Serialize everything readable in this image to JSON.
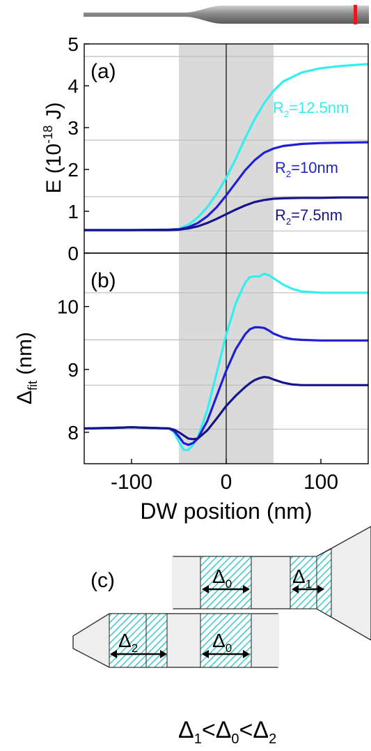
{
  "colors": {
    "cyan": "#33EEEE",
    "blue": "#1F1FD6",
    "navy": "#16168A",
    "shade": "#DADADA",
    "grid": "#BDBDBD",
    "hatch": "#3CC8C8",
    "nanowire_marker": "#E41A1C"
  },
  "chart_data": [
    {
      "type": "line",
      "panel_label": "(a)",
      "ylabel_main": "E (10",
      "ylabel_exp": "-18",
      "ylabel_end": " J)",
      "xlim": [
        -150,
        150
      ],
      "ylim": [
        0,
        5
      ],
      "yticks": [
        0,
        1,
        2,
        3,
        4,
        5
      ],
      "ytick_labels": [
        "0",
        "1",
        "2",
        "3",
        "4",
        "5"
      ],
      "shaded_region": [
        -50,
        50
      ],
      "vline": 0,
      "hlines": [
        4.7,
        2.7,
        1.35,
        0.53
      ],
      "series": [
        {
          "label_main": "R",
          "label_sub": "2",
          "label_end": "=12.5nm",
          "color": "cyan",
          "x": [
            -150,
            -100,
            -60,
            -50,
            -40,
            -30,
            -20,
            -10,
            0,
            10,
            20,
            30,
            40,
            50,
            60,
            80,
            100,
            120,
            150
          ],
          "y": [
            0.55,
            0.55,
            0.56,
            0.58,
            0.68,
            0.85,
            1.1,
            1.42,
            1.8,
            2.25,
            2.75,
            3.2,
            3.58,
            3.88,
            4.1,
            4.32,
            4.42,
            4.47,
            4.52
          ]
        },
        {
          "label_main": "R",
          "label_sub": "2",
          "label_end": "=10nm",
          "color": "blue",
          "x": [
            -150,
            -100,
            -60,
            -50,
            -40,
            -30,
            -20,
            -10,
            0,
            10,
            20,
            30,
            40,
            50,
            60,
            80,
            100,
            120,
            150
          ],
          "y": [
            0.55,
            0.55,
            0.56,
            0.57,
            0.62,
            0.72,
            0.88,
            1.1,
            1.38,
            1.68,
            1.98,
            2.22,
            2.4,
            2.5,
            2.56,
            2.61,
            2.63,
            2.64,
            2.65
          ]
        },
        {
          "label_main": "R",
          "label_sub": "2",
          "label_end": "=7.5nm",
          "color": "navy",
          "x": [
            -150,
            -100,
            -60,
            -50,
            -40,
            -30,
            -20,
            -10,
            0,
            10,
            20,
            30,
            40,
            50,
            60,
            80,
            100,
            120,
            150
          ],
          "y": [
            0.55,
            0.55,
            0.55,
            0.56,
            0.59,
            0.64,
            0.72,
            0.82,
            0.93,
            1.04,
            1.14,
            1.22,
            1.27,
            1.3,
            1.31,
            1.32,
            1.32,
            1.33,
            1.33
          ]
        }
      ]
    },
    {
      "type": "line",
      "panel_label": "(b)",
      "ylabel_main": "Δ",
      "ylabel_sub": "fit",
      "ylabel_end": " (nm)",
      "xlabel": "DW position (nm)",
      "xlim": [
        -150,
        150
      ],
      "xticks": [
        -100,
        0,
        100
      ],
      "xtick_labels": [
        "-100",
        "0",
        "100"
      ],
      "ylim": [
        7.5,
        10.85
      ],
      "yticks": [
        8,
        9,
        10
      ],
      "ytick_labels": [
        "8",
        "9",
        "10"
      ],
      "shaded_region": [
        -50,
        50
      ],
      "vline": 0,
      "hlines": [
        10.22,
        9.47,
        8.75,
        8.05
      ],
      "series": [
        {
          "color": "cyan",
          "x": [
            -150,
            -120,
            -100,
            -80,
            -60,
            -55,
            -50,
            -45,
            -40,
            -35,
            -30,
            -20,
            -10,
            0,
            10,
            20,
            25,
            30,
            35,
            40,
            45,
            50,
            60,
            70,
            80,
            100,
            120,
            150
          ],
          "y": [
            8.06,
            8.07,
            8.08,
            8.07,
            8.06,
            8.0,
            7.85,
            7.72,
            7.72,
            7.8,
            7.92,
            8.35,
            8.95,
            9.55,
            10.05,
            10.38,
            10.47,
            10.48,
            10.48,
            10.52,
            10.5,
            10.45,
            10.35,
            10.28,
            10.24,
            10.22,
            10.22,
            10.22
          ]
        },
        {
          "color": "blue",
          "x": [
            -150,
            -120,
            -100,
            -80,
            -60,
            -55,
            -50,
            -45,
            -40,
            -35,
            -30,
            -20,
            -10,
            0,
            10,
            20,
            25,
            30,
            35,
            40,
            45,
            50,
            60,
            70,
            80,
            100,
            120,
            150
          ],
          "y": [
            8.06,
            8.07,
            8.08,
            8.07,
            8.06,
            8.02,
            7.93,
            7.83,
            7.8,
            7.83,
            7.9,
            8.18,
            8.58,
            8.98,
            9.32,
            9.56,
            9.64,
            9.67,
            9.67,
            9.66,
            9.62,
            9.57,
            9.51,
            9.48,
            9.47,
            9.46,
            9.46,
            9.46
          ]
        },
        {
          "color": "navy",
          "x": [
            -150,
            -120,
            -100,
            -80,
            -60,
            -55,
            -50,
            -45,
            -40,
            -35,
            -30,
            -20,
            -10,
            0,
            10,
            20,
            25,
            30,
            35,
            40,
            45,
            50,
            60,
            70,
            80,
            100,
            120,
            150
          ],
          "y": [
            8.06,
            8.07,
            8.08,
            8.07,
            8.06,
            8.04,
            8.0,
            7.95,
            7.9,
            7.89,
            7.9,
            8.03,
            8.22,
            8.42,
            8.58,
            8.72,
            8.78,
            8.83,
            8.86,
            8.88,
            8.87,
            8.84,
            8.79,
            8.76,
            8.75,
            8.75,
            8.75,
            8.75
          ]
        }
      ]
    }
  ],
  "diagram": {
    "panel_label": "(c)",
    "delta0": {
      "main": "Δ",
      "sub": "0"
    },
    "delta1": {
      "main": "Δ",
      "sub": "1"
    },
    "delta2": {
      "main": "Δ",
      "sub": "2"
    },
    "relation": {
      "d1": "Δ",
      "s1": "1",
      "lt1": "<",
      "d2": "Δ",
      "s2": "0",
      "lt2": "<",
      "d3": "Δ",
      "s3": "2"
    }
  }
}
